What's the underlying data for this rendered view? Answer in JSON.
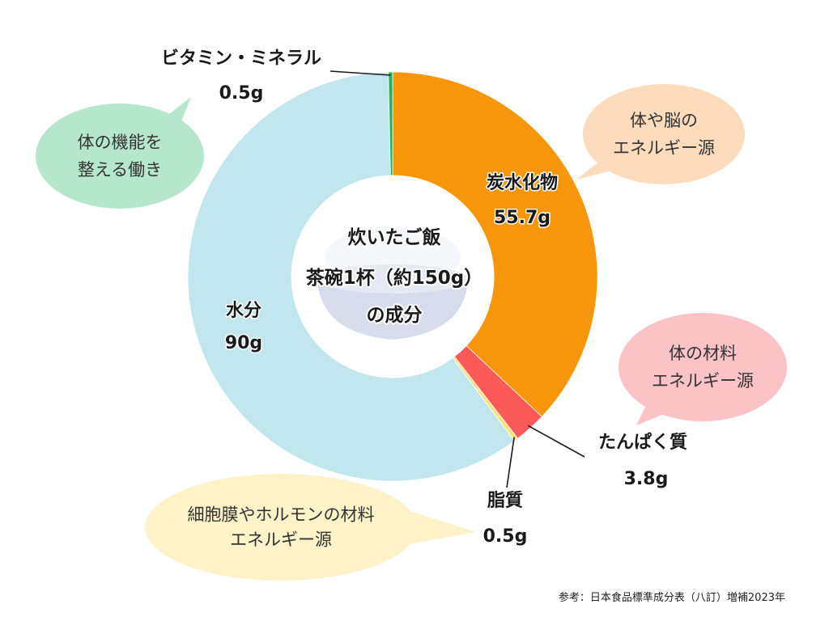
{
  "chart_data": {
    "type": "pie",
    "title_lines": [
      "炊いたご飯",
      "茶碗1杯（約150g）",
      "の成分"
    ],
    "unit": "g",
    "slices": [
      {
        "name": "炭水化物",
        "value": 55.7,
        "value_label": "55.7g",
        "color": "#f7960a"
      },
      {
        "name": "たんぱく質",
        "value": 3.8,
        "value_label": "3.8g",
        "color": "#fb5a59"
      },
      {
        "name": "脂質",
        "value": 0.5,
        "value_label": "0.5g",
        "color": "#fde27a"
      },
      {
        "name": "水分",
        "value": 90,
        "value_label": "90g",
        "color": "#c2e6ee"
      },
      {
        "name": "ビタミン・ミネラル",
        "value": 0.5,
        "value_label": "0.5g",
        "color": "#1db45a"
      }
    ],
    "callouts": [
      {
        "for": "ビタミン・ミネラル",
        "lines": [
          "体の機能を",
          "整える働き"
        ],
        "color": "#b6e7cd"
      },
      {
        "for": "炭水化物",
        "lines": [
          "体や脳の",
          "エネルギー源"
        ],
        "color": "#fcdcbc"
      },
      {
        "for": "たんぱく質",
        "lines": [
          "体の材料",
          "エネルギー源"
        ],
        "color": "#fcc3c6"
      },
      {
        "for": "脂質",
        "lines": [
          "細胞膜やホルモンの材料",
          "エネルギー源"
        ],
        "color": "#fdf2c8"
      }
    ],
    "source": "参考：日本食品標準成分表（八訂）増補2023年",
    "legend": "none"
  }
}
